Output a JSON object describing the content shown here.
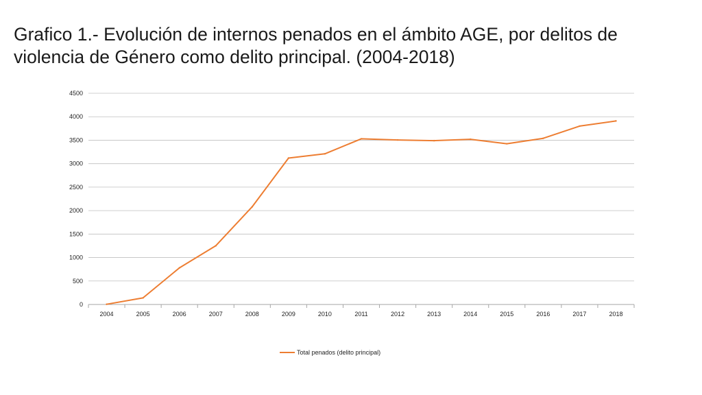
{
  "title": "Grafico 1.- Evolución de internos penados en el ámbito AGE, por delitos de violencia de Género como delito principal. (2004-2018)",
  "colors": {
    "series": "#ED7D31",
    "grid": "#BFBFBF",
    "axis": "#A6A6A6"
  },
  "chart_data": {
    "type": "line",
    "title": "",
    "xlabel": "",
    "ylabel": "",
    "categories": [
      "2004",
      "2005",
      "2006",
      "2007",
      "2008",
      "2009",
      "2010",
      "2011",
      "2012",
      "2013",
      "2014",
      "2015",
      "2016",
      "2017",
      "2018"
    ],
    "series": [
      {
        "name": "Total penados (delito principal)",
        "values": [
          5,
          140,
          780,
          1250,
          2080,
          3120,
          3210,
          3530,
          3505,
          3490,
          3520,
          3425,
          3540,
          3800,
          3910
        ]
      }
    ],
    "ylim": [
      0,
      4500
    ],
    "yticks": [
      "0",
      "500",
      "1000",
      "1500",
      "2000",
      "2500",
      "3000",
      "3500",
      "4000",
      "4500"
    ],
    "grid": true,
    "legend_position": "bottom"
  }
}
